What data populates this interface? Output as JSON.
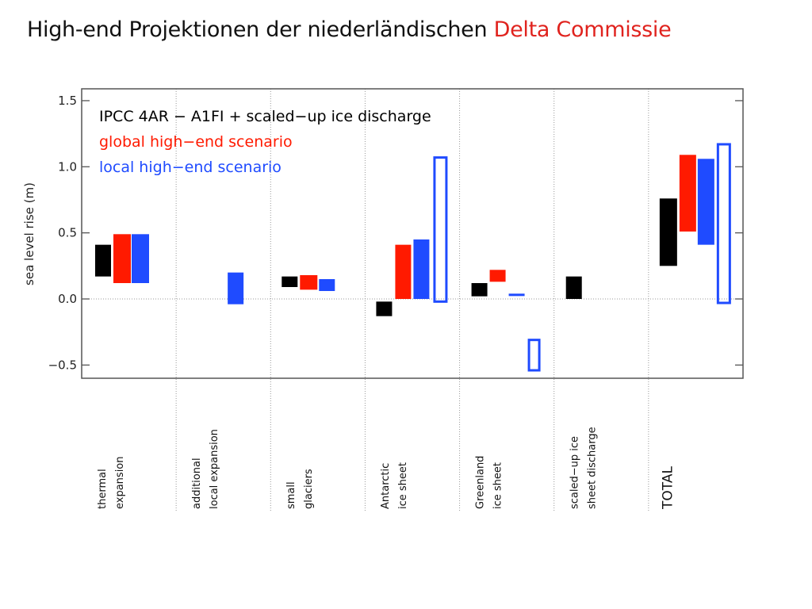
{
  "slide": {
    "title_main": "High-end Projektionen der niederländischen",
    "title_accent": "Delta Commissie",
    "accent_color": "#e0231e"
  },
  "colors": {
    "black": "#000000",
    "red": "#ff1a00",
    "blue": "#1f4bff"
  },
  "chart_data": {
    "type": "bar",
    "subtype": "floating range bars",
    "ylabel": "sea level rise (m)",
    "ylim": [
      -0.6,
      1.5
    ],
    "yticks": [
      1.5,
      1.0,
      0.5,
      0.0,
      -0.5
    ],
    "ytick_labels": [
      "1.5",
      "1.0",
      "0.5",
      "0.0",
      "−0.5"
    ],
    "zero_line": "dotted",
    "legend": [
      {
        "label": "IPCC 4AR − A1FI + scaled−up ice discharge",
        "color": "#000000"
      },
      {
        "label": "global high−end scenario",
        "color": "#ff1a00"
      },
      {
        "label": "local high−end scenario",
        "color": "#1f4bff"
      }
    ],
    "legend_position": "top-left",
    "categories": [
      {
        "label": [
          "thermal",
          "expansion"
        ],
        "font_size": 13
      },
      {
        "label": [
          "additional",
          "local expansion"
        ],
        "font_size": 13
      },
      {
        "label": [
          "small",
          "glaciers"
        ],
        "font_size": 13
      },
      {
        "label": [
          "Antarctic",
          "ice sheet"
        ],
        "font_size": 13
      },
      {
        "label": [
          "Greenland",
          "ice sheet"
        ],
        "font_size": 13
      },
      {
        "label": [
          "scaled−up ice",
          "sheet discharge"
        ],
        "font_size": 13
      },
      {
        "label": [
          "TOTAL"
        ],
        "font_size": 17
      }
    ],
    "bars": [
      {
        "category": 0,
        "series": "black",
        "low": 0.17,
        "high": 0.41,
        "filled": true
      },
      {
        "category": 0,
        "series": "red",
        "low": 0.12,
        "high": 0.49,
        "filled": true
      },
      {
        "category": 0,
        "series": "blue",
        "low": 0.12,
        "high": 0.49,
        "filled": true
      },
      {
        "category": 1,
        "series": "blue",
        "low": -0.04,
        "high": 0.2,
        "filled": true
      },
      {
        "category": 2,
        "series": "black",
        "low": 0.09,
        "high": 0.17,
        "filled": true
      },
      {
        "category": 2,
        "series": "red",
        "low": 0.07,
        "high": 0.18,
        "filled": true
      },
      {
        "category": 2,
        "series": "blue",
        "low": 0.06,
        "high": 0.15,
        "filled": true
      },
      {
        "category": 3,
        "series": "black",
        "low": -0.13,
        "high": -0.02,
        "filled": true
      },
      {
        "category": 3,
        "series": "red",
        "low": 0.0,
        "high": 0.41,
        "filled": true
      },
      {
        "category": 3,
        "series": "blue",
        "low": 0.0,
        "high": 0.45,
        "filled": true
      },
      {
        "category": 3,
        "series": "blue",
        "low": -0.02,
        "high": 1.07,
        "filled": false
      },
      {
        "category": 4,
        "series": "black",
        "low": 0.02,
        "high": 0.12,
        "filled": true
      },
      {
        "category": 4,
        "series": "red",
        "low": 0.13,
        "high": 0.22,
        "filled": true
      },
      {
        "category": 4,
        "series": "blue",
        "low": 0.03,
        "high": 0.04,
        "filled": true
      },
      {
        "category": 4,
        "series": "blue",
        "low": -0.54,
        "high": -0.31,
        "filled": false
      },
      {
        "category": 5,
        "series": "black",
        "low": 0.0,
        "high": 0.17,
        "filled": true
      },
      {
        "category": 6,
        "series": "black",
        "low": 0.25,
        "high": 0.76,
        "filled": true
      },
      {
        "category": 6,
        "series": "red",
        "low": 0.51,
        "high": 1.09,
        "filled": true
      },
      {
        "category": 6,
        "series": "blue",
        "low": 0.41,
        "high": 1.06,
        "filled": true
      },
      {
        "category": 6,
        "series": "blue",
        "low": -0.03,
        "high": 1.17,
        "filled": false
      }
    ]
  }
}
